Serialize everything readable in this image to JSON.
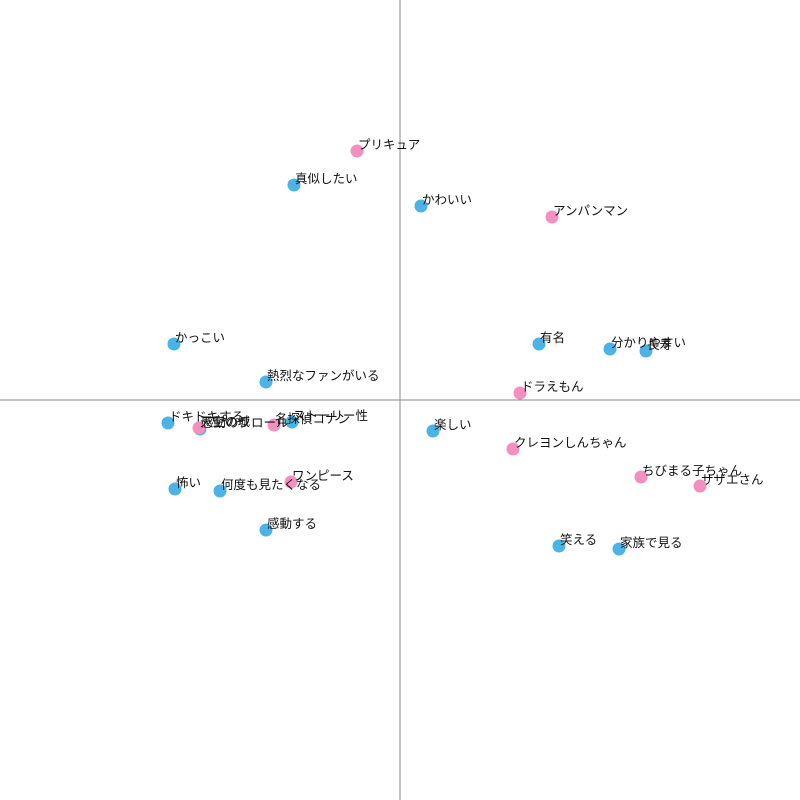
{
  "chart_data": {
    "type": "scatter",
    "title": "",
    "xlabel": "",
    "ylabel": "",
    "xlim": [
      -1.0,
      1.0
    ],
    "ylim": [
      -1.0,
      1.0
    ],
    "grid": false,
    "axes_through_origin": true,
    "colors": {
      "attribute": "#4bb3e6",
      "anime": "#f390c0",
      "axis": "#888888",
      "text": "#111111"
    },
    "series": [
      {
        "color_key": "attribute",
        "points": [
          {
            "label": "真似したい",
            "x": -0.265,
            "y": 0.5375
          },
          {
            "label": "かわいい",
            "x": 0.0525,
            "y": 0.485
          },
          {
            "label": "かっこい",
            "x": -0.565,
            "y": 0.14
          },
          {
            "label": "熱烈なファンがいる",
            "x": -0.335,
            "y": 0.045
          },
          {
            "label": "有名",
            "x": 0.3475,
            "y": 0.14
          },
          {
            "label": "分かりやすい",
            "x": 0.525,
            "y": 0.1275
          },
          {
            "label": "長寿",
            "x": 0.615,
            "y": 0.1225
          },
          {
            "label": "ドキドキする",
            "x": -0.58,
            "y": -0.0575
          },
          {
            "label": "感動のクロール",
            "x": -0.5,
            "y": -0.0725
          },
          {
            "label": "ストーリー性",
            "x": -0.27,
            "y": -0.055
          },
          {
            "label": "楽しい",
            "x": 0.0825,
            "y": -0.0775
          },
          {
            "label": "怖い",
            "x": -0.5625,
            "y": -0.2225
          },
          {
            "label": "何度も見たくなる",
            "x": -0.45,
            "y": -0.2275
          },
          {
            "label": "感動する",
            "x": -0.335,
            "y": -0.325
          },
          {
            "label": "笑える",
            "x": 0.3975,
            "y": -0.365
          },
          {
            "label": "家族で見る",
            "x": 0.5475,
            "y": -0.3725
          }
        ]
      },
      {
        "color_key": "anime",
        "points": [
          {
            "label": "プリキュア",
            "x": -0.1075,
            "y": 0.6225
          },
          {
            "label": "アンパンマン",
            "x": 0.38,
            "y": 0.4575
          },
          {
            "label": "ドラえもん",
            "x": 0.3,
            "y": 0.0175
          },
          {
            "label": "クレヨンしんちゃん",
            "x": 0.2825,
            "y": -0.1225
          },
          {
            "label": "ちびまる子ちゃん",
            "x": 0.6025,
            "y": -0.1925
          },
          {
            "label": "サザエさん",
            "x": 0.75,
            "y": -0.215
          },
          {
            "label": "ワンピース",
            "x": -0.2725,
            "y": -0.205
          },
          {
            "label": "名探偵コナン",
            "x": -0.315,
            "y": -0.0625
          },
          {
            "label": "天空の城",
            "x": -0.5025,
            "y": -0.07
          }
        ]
      }
    ]
  }
}
